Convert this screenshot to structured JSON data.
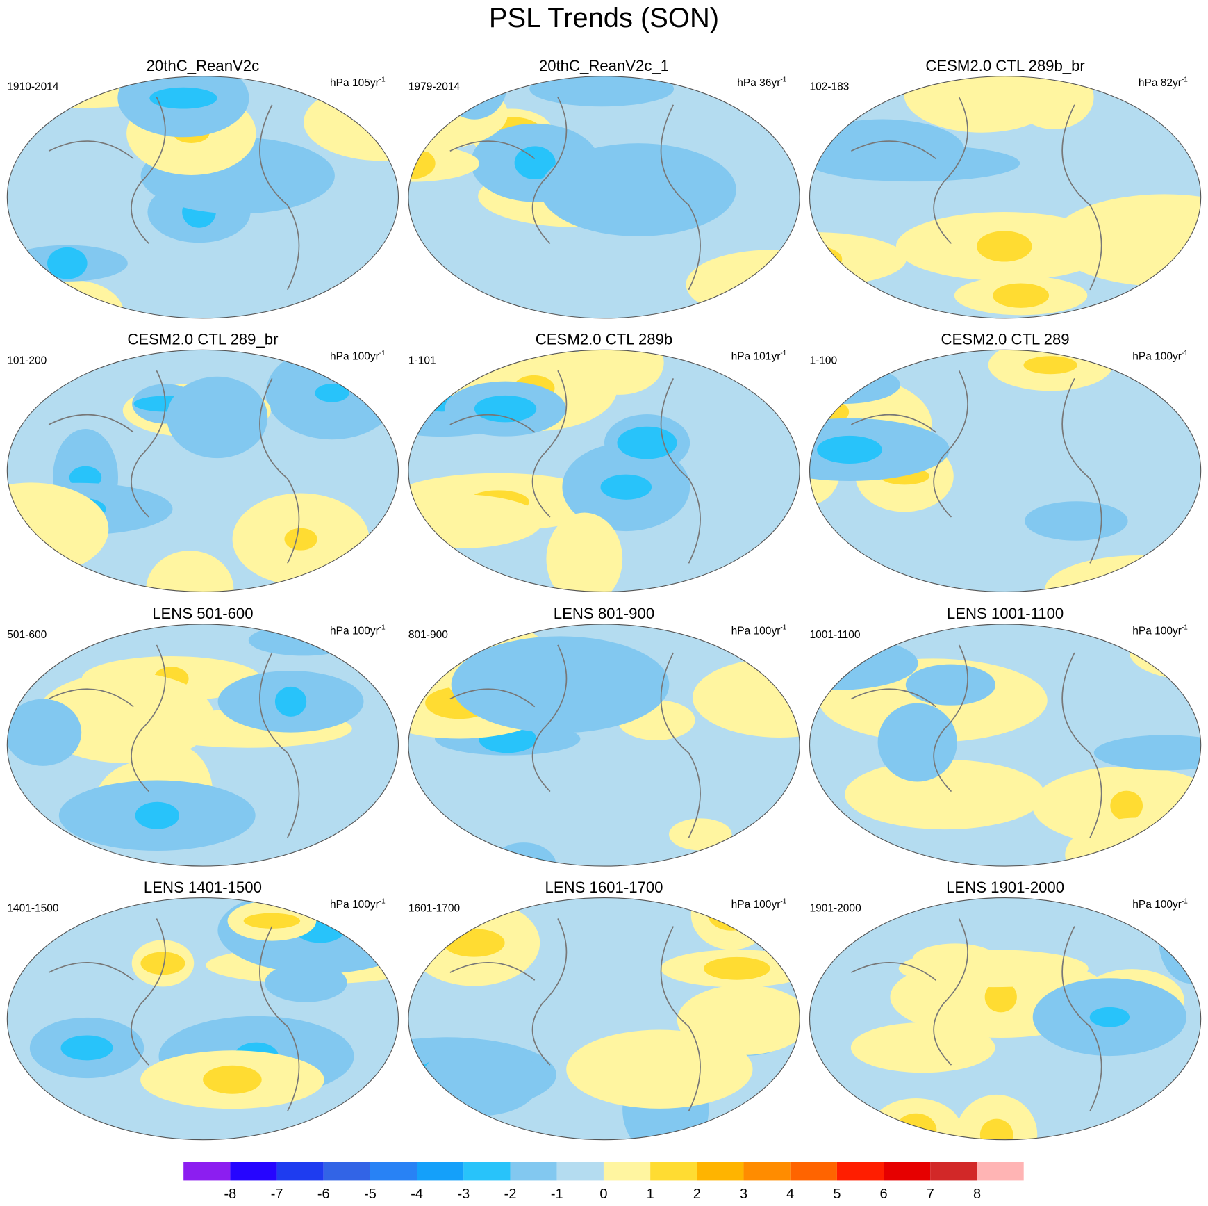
{
  "header": {
    "title": "PSL Trends (SON)"
  },
  "panels": [
    {
      "title": "20thC_ReanV2c",
      "period": "1910-2014",
      "unit": "hPa 105yr",
      "unit_sup": "-1"
    },
    {
      "title": "20thC_ReanV2c_1",
      "period": "1979-2014",
      "unit": "hPa 36yr",
      "unit_sup": "-1"
    },
    {
      "title": "CESM2.0 CTL 289b_br",
      "period": "102-183",
      "unit": "hPa 82yr",
      "unit_sup": "-1"
    },
    {
      "title": "CESM2.0 CTL 289_br",
      "period": "101-200",
      "unit": "hPa 100yr",
      "unit_sup": "-1"
    },
    {
      "title": "CESM2.0 CTL 289b",
      "period": "1-101",
      "unit": "hPa 101yr",
      "unit_sup": "-1"
    },
    {
      "title": "CESM2.0 CTL 289",
      "period": "1-100",
      "unit": "hPa 100yr",
      "unit_sup": "-1"
    },
    {
      "title": "LENS 501-600",
      "period": "501-600",
      "unit": "hPa 100yr",
      "unit_sup": "-1"
    },
    {
      "title": "LENS 801-900",
      "period": "801-900",
      "unit": "hPa 100yr",
      "unit_sup": "-1"
    },
    {
      "title": "LENS 1001-1100",
      "period": "1001-1100",
      "unit": "hPa 100yr",
      "unit_sup": "-1"
    },
    {
      "title": "LENS 1401-1500",
      "period": "1401-1500",
      "unit": "hPa 100yr",
      "unit_sup": "-1"
    },
    {
      "title": "LENS 1601-1700",
      "period": "1601-1700",
      "unit": "hPa 100yr",
      "unit_sup": "-1"
    },
    {
      "title": "LENS 1901-2000",
      "period": "1901-2000",
      "unit": "hPa 100yr",
      "unit_sup": "-1"
    }
  ],
  "colorbar": {
    "colors": [
      "#8c1ef0",
      "#2605ff",
      "#1e3cf0",
      "#3264e6",
      "#2882f5",
      "#14a0fa",
      "#28c3fa",
      "#82c8f0",
      "#b4dcf0",
      "#fff5a0",
      "#ffdc32",
      "#ffb400",
      "#ff8c00",
      "#ff6400",
      "#ff1e00",
      "#e60000",
      "#d22828",
      "#ffb4b4"
    ],
    "labels": [
      -8,
      -7,
      -6,
      -5,
      -4,
      -3,
      -2,
      -1,
      0,
      1,
      2,
      3,
      4,
      5,
      6,
      7,
      8
    ]
  }
}
